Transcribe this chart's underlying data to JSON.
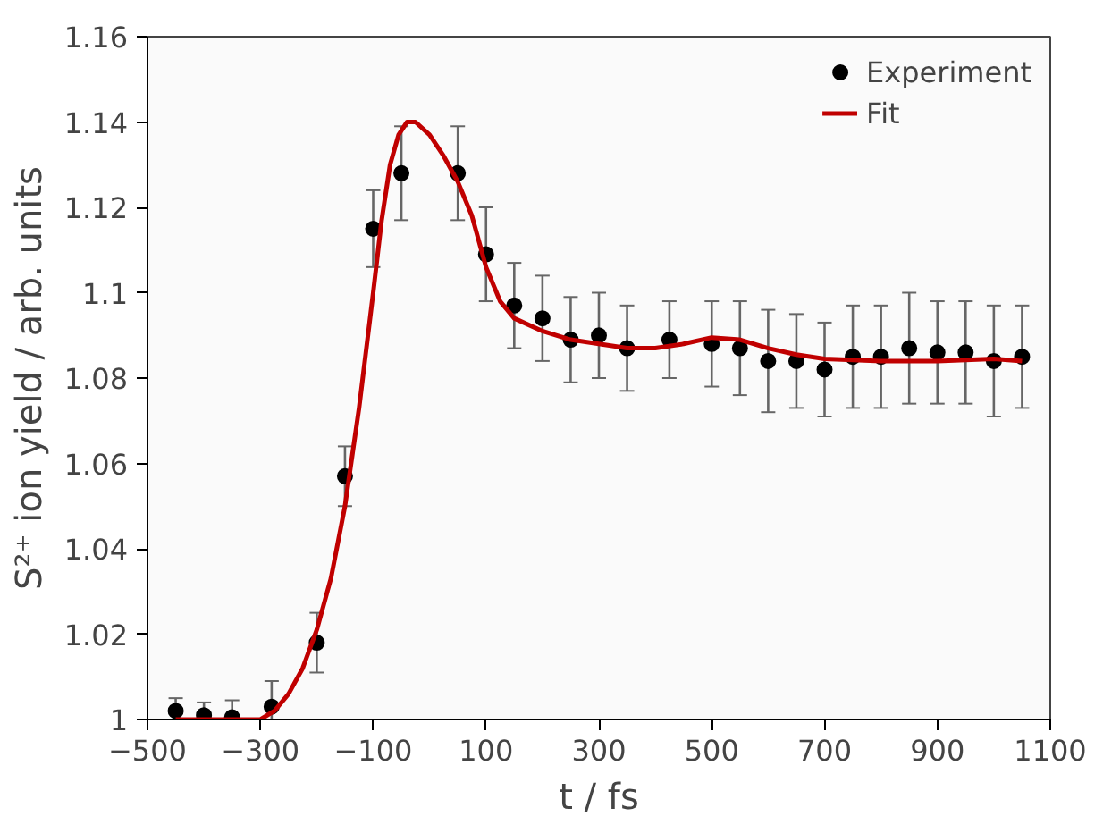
{
  "chart_data": {
    "type": "scatter",
    "xlabel": "t / fs",
    "ylabel": "S²⁺ ion yield / arb. units",
    "xlim": [
      -500,
      1100
    ],
    "ylim": [
      1,
      1.16
    ],
    "xticks": [
      -500,
      -300,
      -100,
      100,
      300,
      500,
      700,
      900,
      1100
    ],
    "yticks": [
      1,
      1.02,
      1.04,
      1.06,
      1.08,
      {
        "value": 1.1,
        "label": "1.1"
      },
      1.12,
      1.14,
      1.16
    ],
    "grid": false,
    "legend": "top right",
    "series": [
      {
        "name": "Experiment",
        "marker": "circle",
        "color": "#000000",
        "x": [
          -450,
          -400,
          -350,
          -280,
          -200,
          -150,
          -100,
          -50,
          50,
          100,
          150,
          200,
          250,
          300,
          350,
          425,
          500,
          550,
          600,
          650,
          700,
          750,
          800,
          850,
          900,
          950,
          1000,
          1050
        ],
        "values": [
          1.002,
          1.001,
          1.0005,
          1.003,
          1.018,
          1.057,
          1.115,
          1.128,
          1.128,
          1.109,
          1.097,
          1.094,
          1.089,
          1.09,
          1.087,
          1.089,
          1.088,
          1.087,
          1.084,
          1.084,
          1.082,
          1.085,
          1.085,
          1.087,
          1.086,
          1.086,
          1.084,
          1.085
        ],
        "errors": [
          0.003,
          0.003,
          0.004,
          0.006,
          0.007,
          0.007,
          0.009,
          0.011,
          0.011,
          0.011,
          0.01,
          0.01,
          0.01,
          0.01,
          0.01,
          0.009,
          0.01,
          0.011,
          0.012,
          0.011,
          0.011,
          0.012,
          0.012,
          0.013,
          0.012,
          0.012,
          0.013,
          0.012
        ]
      },
      {
        "name": "Fit",
        "type": "line",
        "color": "#c00000",
        "marker": "none",
        "line_style": "solid",
        "x": [
          -450,
          -400,
          -350,
          -300,
          -275,
          -250,
          -225,
          -200,
          -175,
          -150,
          -125,
          -100,
          -85,
          -70,
          -55,
          -40,
          -25,
          0,
          25,
          50,
          75,
          100,
          125,
          150,
          200,
          250,
          300,
          350,
          400,
          450,
          500,
          550,
          600,
          650,
          700,
          800,
          900,
          1000,
          1050
        ],
        "values": [
          1.0,
          1.0,
          1.0,
          1.0,
          1.002,
          1.006,
          1.012,
          1.021,
          1.033,
          1.05,
          1.073,
          1.1,
          1.117,
          1.13,
          1.137,
          1.14,
          1.14,
          1.137,
          1.132,
          1.126,
          1.118,
          1.106,
          1.098,
          1.094,
          1.091,
          1.089,
          1.088,
          1.087,
          1.087,
          1.088,
          1.0895,
          1.089,
          1.087,
          1.0855,
          1.0845,
          1.084,
          1.084,
          1.0845,
          1.084
        ]
      }
    ]
  }
}
